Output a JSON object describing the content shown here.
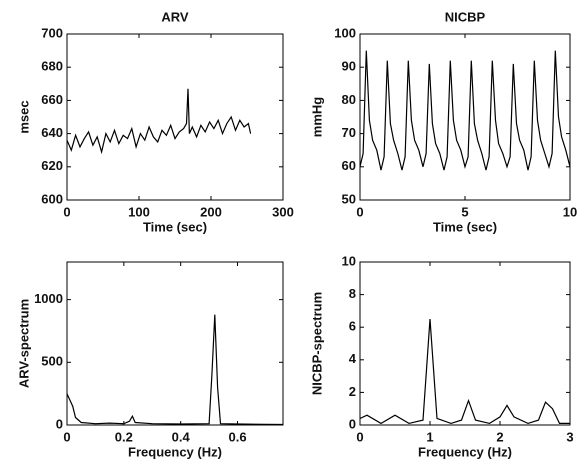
{
  "chart_data": [
    {
      "type": "line",
      "title": "ARV",
      "xlabel": "Time (sec)",
      "ylabel": "msec",
      "color": "#000000",
      "x": [
        0,
        6,
        12,
        18,
        24,
        30,
        36,
        42,
        48,
        54,
        60,
        66,
        72,
        78,
        84,
        90,
        96,
        102,
        108,
        114,
        120,
        126,
        132,
        138,
        144,
        150,
        156,
        162,
        166,
        168,
        170,
        174,
        180,
        186,
        192,
        198,
        204,
        210,
        216,
        222,
        228,
        234,
        240,
        246,
        252,
        255
      ],
      "values": [
        636,
        630,
        639,
        632,
        637,
        641,
        633,
        638,
        629,
        640,
        635,
        642,
        634,
        639,
        637,
        643,
        632,
        640,
        636,
        644,
        638,
        635,
        642,
        639,
        645,
        637,
        641,
        643,
        646,
        667,
        640,
        644,
        638,
        645,
        641,
        647,
        643,
        648,
        640,
        646,
        650,
        642,
        648,
        644,
        646,
        640
      ],
      "xlim": [
        0,
        300
      ],
      "ylim": [
        600,
        700
      ],
      "xticks": [
        0,
        100,
        200,
        300
      ],
      "yticks": [
        600,
        620,
        640,
        660,
        680,
        700
      ]
    },
    {
      "type": "line",
      "title": "NICBP",
      "xlabel": "Time (sec)",
      "ylabel": "mmHg",
      "color": "#000000",
      "x": [
        0,
        0.15,
        0.3,
        0.45,
        0.6,
        0.8,
        1,
        1.15,
        1.3,
        1.45,
        1.6,
        1.8,
        2,
        2.15,
        2.3,
        2.45,
        2.6,
        2.8,
        3,
        3.15,
        3.3,
        3.45,
        3.6,
        3.8,
        4,
        4.15,
        4.3,
        4.45,
        4.6,
        4.8,
        5,
        5.15,
        5.3,
        5.45,
        5.6,
        5.8,
        6,
        6.15,
        6.3,
        6.45,
        6.6,
        6.8,
        7,
        7.15,
        7.3,
        7.45,
        7.6,
        7.8,
        8,
        8.15,
        8.3,
        8.45,
        8.6,
        8.8,
        9,
        9.15,
        9.3,
        9.45,
        9.6,
        9.8,
        10
      ],
      "values": [
        60,
        64,
        95,
        74,
        68,
        65,
        59,
        63,
        92,
        73,
        68,
        64,
        59,
        63,
        92,
        74,
        68,
        65,
        60,
        64,
        91,
        73,
        67,
        64,
        59,
        63,
        92,
        74,
        68,
        65,
        60,
        63,
        92,
        73,
        68,
        64,
        59,
        63,
        92,
        74,
        67,
        64,
        60,
        63,
        91,
        73,
        68,
        65,
        59,
        63,
        92,
        74,
        68,
        64,
        60,
        64,
        95,
        75,
        69,
        65,
        60
      ],
      "xlim": [
        0,
        10
      ],
      "ylim": [
        50,
        100
      ],
      "xticks": [
        0,
        5,
        10
      ],
      "yticks": [
        50,
        60,
        70,
        80,
        90,
        100
      ]
    },
    {
      "type": "line",
      "xlabel": "Frequency (Hz)",
      "ylabel": "ARV-spectrum",
      "color": "#000000",
      "x": [
        0,
        0.01,
        0.02,
        0.03,
        0.05,
        0.1,
        0.15,
        0.2,
        0.22,
        0.23,
        0.24,
        0.3,
        0.4,
        0.5,
        0.51,
        0.52,
        0.53,
        0.54,
        0.6,
        0.7,
        0.76
      ],
      "values": [
        250,
        200,
        150,
        60,
        20,
        10,
        15,
        10,
        30,
        70,
        20,
        10,
        8,
        10,
        400,
        880,
        300,
        10,
        8,
        5,
        4
      ],
      "xlim": [
        0,
        0.76
      ],
      "ylim": [
        0,
        1300
      ],
      "xticks": [
        0,
        0.2,
        0.4,
        0.6
      ],
      "yticks": [
        0,
        500,
        1000
      ]
    },
    {
      "type": "line",
      "xlabel": "Frequency (Hz)",
      "ylabel": "NICBP-spectrum",
      "color": "#000000",
      "x": [
        0,
        0.1,
        0.3,
        0.5,
        0.7,
        0.9,
        1,
        1.1,
        1.3,
        1.45,
        1.55,
        1.65,
        1.85,
        2,
        2.1,
        2.2,
        2.4,
        2.55,
        2.65,
        2.75,
        2.85,
        3
      ],
      "values": [
        0.4,
        0.6,
        0.1,
        0.6,
        0.1,
        0.3,
        6.5,
        0.4,
        0.1,
        0.3,
        1.5,
        0.3,
        0.1,
        0.5,
        1.2,
        0.5,
        0.1,
        0.3,
        1.4,
        1,
        0.1,
        0.1
      ],
      "xlim": [
        0,
        3
      ],
      "ylim": [
        0,
        10
      ],
      "xticks": [
        0,
        1,
        2,
        3
      ],
      "yticks": [
        0,
        2,
        4,
        6,
        8,
        10
      ]
    }
  ]
}
